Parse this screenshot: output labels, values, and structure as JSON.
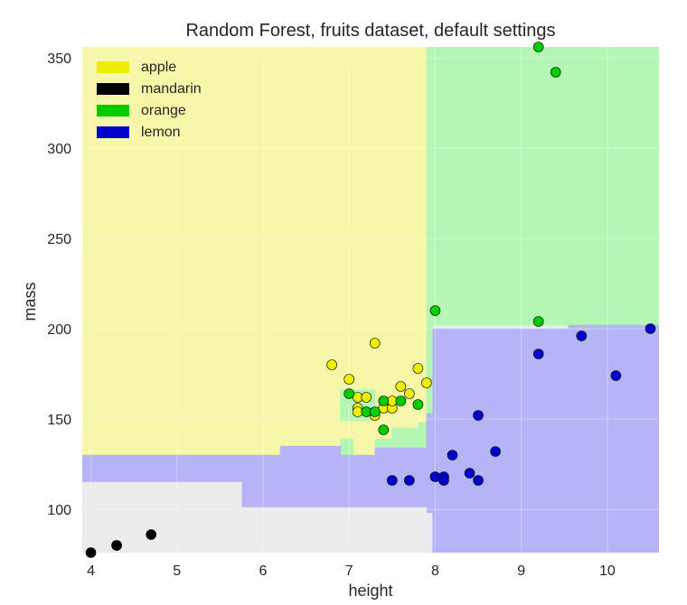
{
  "chart_data": {
    "type": "scatter",
    "title": "Random Forest, fruits dataset, default settings",
    "xlabel": "height",
    "ylabel": "mass",
    "xlim": [
      3.9,
      10.6
    ],
    "ylim": [
      76,
      356
    ],
    "x_ticks": [
      "4",
      "5",
      "6",
      "7",
      "8",
      "9",
      "10"
    ],
    "y_ticks": [
      "100",
      "150",
      "200",
      "250",
      "300",
      "350"
    ],
    "grid": true,
    "legend_position": "top-left",
    "legend": [
      {
        "name": "apple",
        "color": "#eeee00"
      },
      {
        "name": "mandarin",
        "color": "#000000"
      },
      {
        "name": "orange",
        "color": "#00cc00"
      },
      {
        "name": "lemon",
        "color": "#0000cc"
      }
    ],
    "regions": [
      {
        "class": "apple",
        "color": "#f7f7aa",
        "polygon": [
          [
            3.9,
            356
          ],
          [
            7.9,
            356
          ],
          [
            7.9,
            148
          ],
          [
            7.8,
            148
          ],
          [
            7.8,
            145
          ],
          [
            7.5,
            145
          ],
          [
            7.5,
            139
          ],
          [
            7.3,
            139
          ],
          [
            7.3,
            130
          ],
          [
            3.9,
            130
          ]
        ]
      },
      {
        "class": "orange",
        "color": "#b4f7b4",
        "polygon": [
          [
            7.9,
            356
          ],
          [
            10.6,
            356
          ],
          [
            10.6,
            202
          ],
          [
            7.9,
            202
          ]
        ]
      },
      {
        "class": "orange",
        "color": "#b4f7b4",
        "polygon": [
          [
            7.3,
            139
          ],
          [
            7.5,
            139
          ],
          [
            7.5,
            145
          ],
          [
            7.8,
            145
          ],
          [
            7.8,
            148
          ],
          [
            7.9,
            148
          ],
          [
            7.9,
            202
          ],
          [
            7.97,
            202
          ],
          [
            7.97,
            153
          ],
          [
            7.9,
            153
          ],
          [
            7.9,
            134
          ],
          [
            7.3,
            134
          ]
        ]
      },
      {
        "class": "orange",
        "color": "#b4f7b4",
        "polygon": [
          [
            6.9,
            139
          ],
          [
            7.05,
            139
          ],
          [
            7.05,
            130
          ],
          [
            6.9,
            130
          ]
        ]
      },
      {
        "class": "orange",
        "color": "#b4f7b4",
        "polygon": [
          [
            6.9,
            166
          ],
          [
            7.3,
            166
          ],
          [
            7.3,
            149
          ],
          [
            6.9,
            149
          ]
        ]
      },
      {
        "class": "lemon",
        "color": "#b4b4f7",
        "polygon": [
          [
            7.97,
            200
          ],
          [
            9.55,
            200
          ],
          [
            9.55,
            202
          ],
          [
            10.6,
            202
          ],
          [
            10.6,
            76
          ],
          [
            7.97,
            76
          ],
          [
            7.97,
            98
          ],
          [
            7.9,
            98
          ],
          [
            7.9,
            101
          ],
          [
            5.75,
            101
          ],
          [
            5.75,
            115
          ],
          [
            3.9,
            115
          ],
          [
            3.9,
            130
          ],
          [
            6.2,
            130
          ],
          [
            6.2,
            135
          ],
          [
            6.9,
            135
          ],
          [
            6.9,
            130
          ],
          [
            7.3,
            130
          ],
          [
            7.3,
            134
          ],
          [
            7.9,
            134
          ],
          [
            7.9,
            153
          ],
          [
            7.97,
            153
          ]
        ]
      },
      {
        "class": "mandarin",
        "color": "#ececec",
        "polygon": [
          [
            3.9,
            115
          ],
          [
            5.75,
            115
          ],
          [
            5.75,
            101
          ],
          [
            7.9,
            101
          ],
          [
            7.9,
            76
          ],
          [
            3.9,
            76
          ]
        ]
      }
    ],
    "series": [
      {
        "name": "apple",
        "color": "#eeee00",
        "points": [
          [
            6.8,
            180
          ],
          [
            7.0,
            172
          ],
          [
            7.1,
            162
          ],
          [
            7.2,
            162
          ],
          [
            7.1,
            156
          ],
          [
            7.1,
            154
          ],
          [
            7.3,
            192
          ],
          [
            7.3,
            152
          ],
          [
            7.4,
            156
          ],
          [
            7.5,
            156
          ],
          [
            7.5,
            160
          ],
          [
            7.6,
            168
          ],
          [
            7.7,
            164
          ],
          [
            7.8,
            178
          ],
          [
            7.9,
            170
          ]
        ]
      },
      {
        "name": "mandarin",
        "color": "#000000",
        "points": [
          [
            4.0,
            76
          ],
          [
            4.3,
            80
          ],
          [
            4.3,
            80
          ],
          [
            4.7,
            86
          ]
        ]
      },
      {
        "name": "orange",
        "color": "#00cc00",
        "points": [
          [
            7.0,
            164
          ],
          [
            7.2,
            154
          ],
          [
            7.3,
            154
          ],
          [
            7.4,
            160
          ],
          [
            7.4,
            144
          ],
          [
            7.6,
            160
          ],
          [
            7.8,
            158
          ],
          [
            8.0,
            210
          ],
          [
            9.2,
            204
          ],
          [
            9.2,
            356
          ],
          [
            9.4,
            342
          ]
        ]
      },
      {
        "name": "lemon",
        "color": "#0000cc",
        "points": [
          [
            7.5,
            116
          ],
          [
            7.7,
            116
          ],
          [
            8.0,
            118
          ],
          [
            8.1,
            118
          ],
          [
            8.1,
            116
          ],
          [
            8.2,
            130
          ],
          [
            8.4,
            120
          ],
          [
            8.5,
            116
          ],
          [
            8.5,
            152
          ],
          [
            8.7,
            132
          ],
          [
            9.2,
            186
          ],
          [
            9.7,
            196
          ],
          [
            10.1,
            174
          ],
          [
            10.5,
            200
          ]
        ]
      }
    ]
  }
}
